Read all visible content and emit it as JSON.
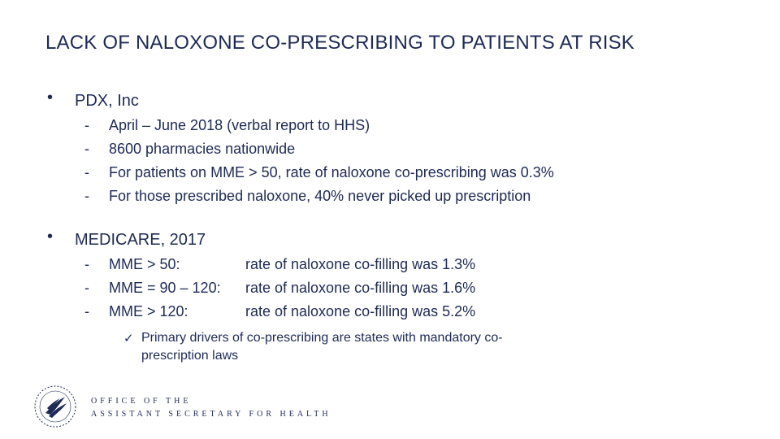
{
  "title": "LACK OF NALOXONE CO-PRESCRIBING TO PATIENTS AT RISK",
  "bullet_symbol": "•",
  "dash_symbol": "-",
  "sections": [
    {
      "label": "PDX, Inc",
      "items": [
        "April – June 2018  (verbal report to HHS)",
        "8600 pharmacies nationwide",
        "For patients on MME > 50, rate of naloxone co-prescribing was 0.3%",
        "For those prescribed naloxone, 40% never picked up prescription"
      ]
    },
    {
      "label": "MEDICARE, 2017",
      "rows": [
        {
          "group": "MME > 50:",
          "rate": "rate of naloxone co-filling was 1.3%"
        },
        {
          "group": "MME = 90 – 120:",
          "rate": "rate of naloxone co-filling was 1.6%"
        },
        {
          "group": "MME > 120:",
          "rate": "rate of naloxone co-filling was 5.2%"
        }
      ]
    }
  ],
  "note": {
    "check_symbol": "✓",
    "text": "Primary drivers of co-prescribing are states with mandatory co-prescription laws"
  },
  "footer": {
    "line1": "OFFICE OF THE",
    "line2": "ASSISTANT SECRETARY FOR HEALTH",
    "seal_icon": "hhs-seal-icon"
  },
  "colors": {
    "text": "#1e2a55"
  }
}
